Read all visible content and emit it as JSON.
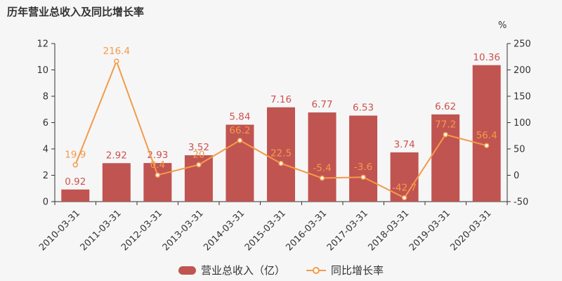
{
  "title": "历年营业总收入及同比增长率",
  "right_axis_unit": "%",
  "legend": [
    {
      "label": "营业总收入（亿）",
      "type": "bar"
    },
    {
      "label": "同比增长率",
      "type": "line"
    }
  ],
  "colors": {
    "background": "#f6f6f6",
    "bar": "#c05451",
    "bar_label": "#cd5250",
    "line": "#f49a4a",
    "line_label": "#f49a4a",
    "marker_fill": "#ffffff",
    "axis": "#333333",
    "text": "#333333"
  },
  "chart_data": {
    "type": "bar",
    "title": "历年营业总收入及同比增长率",
    "categories": [
      "2010-03-31",
      "2011-03-31",
      "2012-03-31",
      "2013-03-31",
      "2014-03-31",
      "2015-03-31",
      "2016-03-31",
      "2017-03-31",
      "2018-03-31",
      "2019-03-31",
      "2020-03-31"
    ],
    "series": [
      {
        "name": "营业总收入（亿）",
        "type": "bar",
        "axis": "left",
        "values": [
          0.92,
          2.92,
          2.93,
          3.52,
          5.84,
          7.16,
          6.77,
          6.53,
          3.74,
          6.62,
          10.36
        ]
      },
      {
        "name": "同比增长率",
        "type": "line",
        "axis": "right",
        "values": [
          19.9,
          216.4,
          0.4,
          20,
          66.2,
          22.5,
          -5.4,
          -3.6,
          -42.7,
          77.2,
          56.4
        ]
      }
    ],
    "left_axis": {
      "min": 0,
      "max": 12,
      "step": 2
    },
    "right_axis": {
      "min": -50,
      "max": 250,
      "step": 50,
      "unit": "%"
    },
    "grid": false,
    "legend_position": "bottom",
    "xlabel": "",
    "ylabel_left": "",
    "ylabel_right": "%"
  }
}
